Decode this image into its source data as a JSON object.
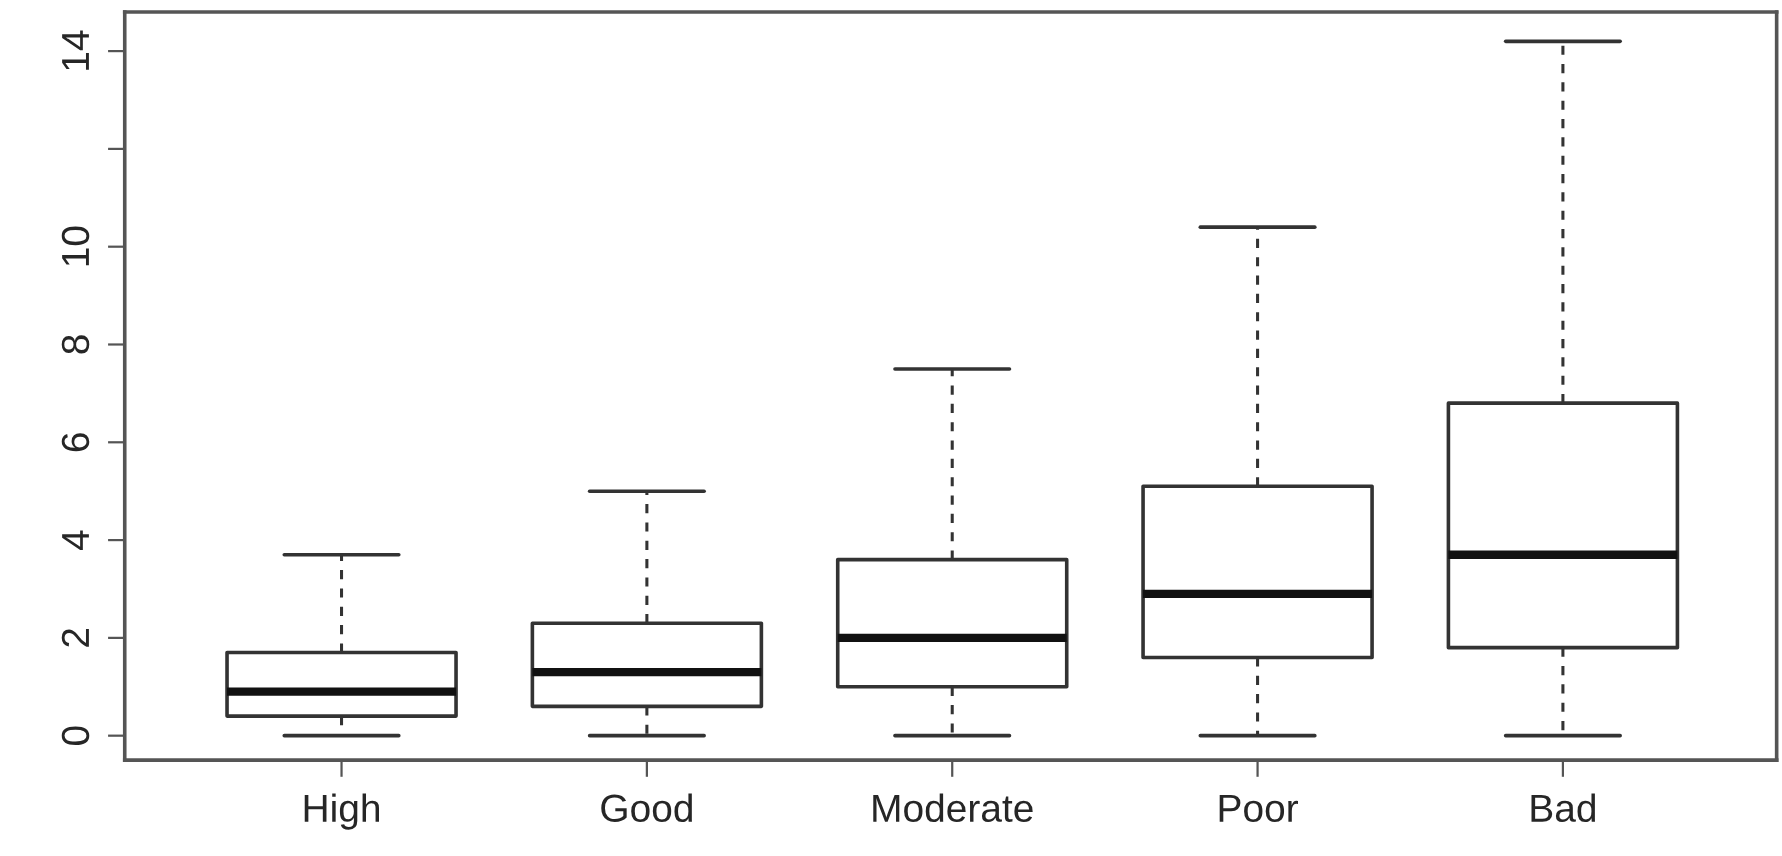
{
  "chart_data": {
    "type": "box",
    "categories": [
      "High",
      "Good",
      "Moderate",
      "Poor",
      "Bad"
    ],
    "boxes": [
      {
        "low": 0,
        "q1": 0.4,
        "median": 0.9,
        "q3": 1.7,
        "high": 3.7
      },
      {
        "low": 0,
        "q1": 0.6,
        "median": 1.3,
        "q3": 2.3,
        "high": 5.0
      },
      {
        "low": 0,
        "q1": 1.0,
        "median": 2.0,
        "q3": 3.6,
        "high": 7.5
      },
      {
        "low": 0,
        "q1": 1.6,
        "median": 2.9,
        "q3": 5.1,
        "high": 10.4
      },
      {
        "low": 0,
        "q1": 1.8,
        "median": 3.7,
        "q3": 6.8,
        "high": 14.2
      }
    ],
    "ylim": [
      -0.5,
      14.8
    ],
    "yticks": [
      0,
      2,
      4,
      6,
      8,
      10,
      {
        "value": 12,
        "label": null
      },
      14
    ],
    "grid": false
  }
}
